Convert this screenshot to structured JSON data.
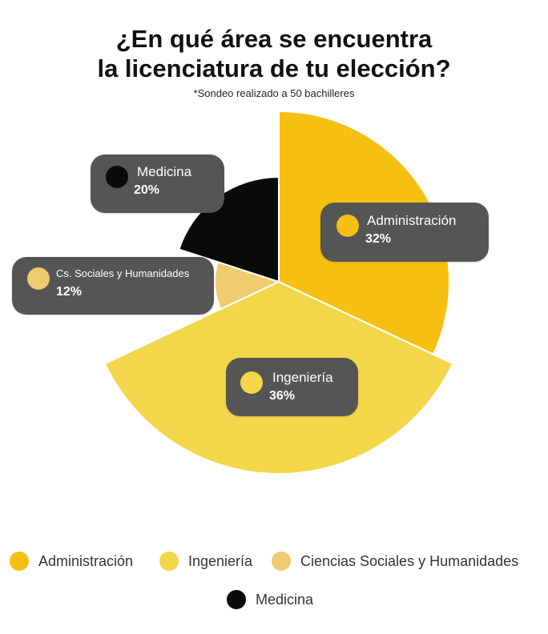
{
  "title_line1": "¿En qué área se encuentra",
  "title_line2": "la licenciatura de tu elección?",
  "subtitle": "*Sondeo realizado a 50 bachilleres",
  "chart_data": {
    "type": "pie",
    "slices": [
      {
        "name": "Administración",
        "value": 32,
        "color": "#F6C012",
        "label": "Administración",
        "pct_label": "32%"
      },
      {
        "name": "Ingeniería",
        "value": 36,
        "color": "#F3D64A",
        "label": "Ingeniería",
        "pct_label": "36%"
      },
      {
        "name": "Ciencias Sociales y Humanidades",
        "value": 12,
        "color": "#EFCB6F",
        "label": "Cs. Sociales y Humanidades",
        "pct_label": "12%"
      },
      {
        "name": "Medicina",
        "value": 20,
        "color": "#0A0A0A",
        "label": "Medicina",
        "pct_label": "20%"
      }
    ]
  },
  "legend": [
    {
      "label": "Administración",
      "color": "#F6C012"
    },
    {
      "label": "Ingeniería",
      "color": "#F3D64A"
    },
    {
      "label": "Ciencias Sociales y Humanidades",
      "color": "#EFCB6F"
    },
    {
      "label": "Medicina",
      "color": "#0A0A0A"
    }
  ]
}
